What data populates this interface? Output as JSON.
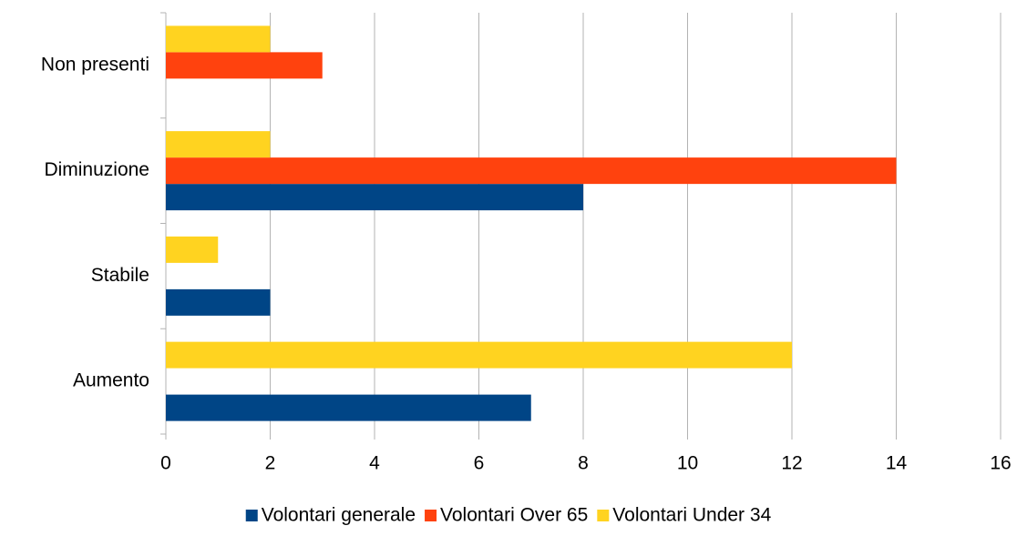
{
  "chart_data": {
    "type": "hbar",
    "categories": [
      "Aumento",
      "Stabile",
      "Diminuzione",
      "Non presenti"
    ],
    "series": [
      {
        "name": "Volontari generale",
        "color": "#004586",
        "values": [
          7,
          2,
          8,
          0
        ]
      },
      {
        "name": "Volontari Over 65",
        "color": "#ff420e",
        "values": [
          0,
          0,
          14,
          3
        ]
      },
      {
        "name": "Volontari Under 34",
        "color": "#ffd320",
        "values": [
          12,
          1,
          2,
          2
        ]
      }
    ],
    "xlim": [
      0,
      16
    ],
    "xticks": [
      0,
      2,
      4,
      6,
      8,
      10,
      12,
      14,
      16
    ],
    "grid": true,
    "legend": "bottom"
  }
}
